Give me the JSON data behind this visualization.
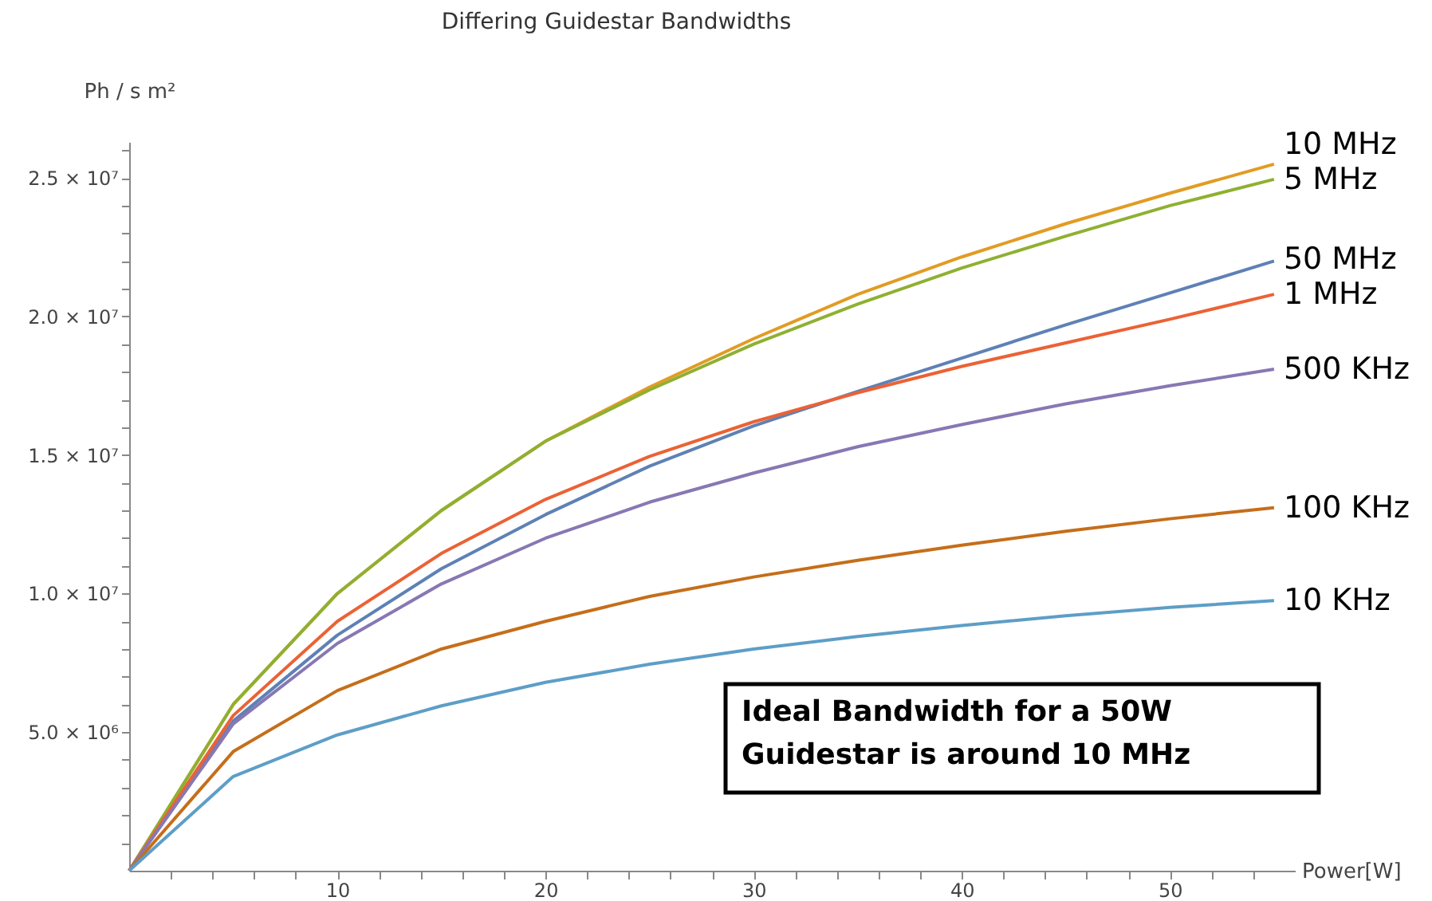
{
  "chart_data": {
    "type": "line",
    "title": "Differing Guidestar Bandwidths",
    "xlabel": "Power[W]",
    "ylabel": "Ph / s m²",
    "x": [
      0,
      5,
      10,
      15,
      20,
      25,
      30,
      35,
      40,
      45,
      50,
      55
    ],
    "series": [
      {
        "name": "10 MHz",
        "color": "#e19c24",
        "values": [
          0,
          6000000,
          10000000,
          13000000,
          15500000,
          17450000,
          19200000,
          20800000,
          22150000,
          23350000,
          24450000,
          25500000
        ]
      },
      {
        "name": "5 MHz",
        "color": "#8fb032",
        "values": [
          0,
          6000000,
          10000000,
          13000000,
          15500000,
          17350000,
          19000000,
          20450000,
          21750000,
          22900000,
          24000000,
          24950000
        ]
      },
      {
        "name": "50 MHz",
        "color": "#5e81b5",
        "values": [
          0,
          5400000,
          8500000,
          10900000,
          12850000,
          14600000,
          16050000,
          17300000,
          18500000,
          19700000,
          20850000,
          22000000
        ]
      },
      {
        "name": "1 MHz",
        "color": "#eb6235",
        "values": [
          0,
          5600000,
          9000000,
          11450000,
          13400000,
          14950000,
          16200000,
          17250000,
          18200000,
          19050000,
          19900000,
          20800000
        ]
      },
      {
        "name": "500 KHz",
        "color": "#8778b3",
        "values": [
          0,
          5300000,
          8200000,
          10350000,
          12000000,
          13300000,
          14350000,
          15300000,
          16100000,
          16850000,
          17500000,
          18100000
        ]
      },
      {
        "name": "100 KHz",
        "color": "#c56e1a",
        "values": [
          0,
          4300000,
          6500000,
          8000000,
          9000000,
          9900000,
          10600000,
          11200000,
          11750000,
          12250000,
          12700000,
          13100000
        ]
      },
      {
        "name": "10 KHz",
        "color": "#5d9ec7",
        "values": [
          0,
          3400000,
          4900000,
          5950000,
          6800000,
          7450000,
          8000000,
          8450000,
          8850000,
          9200000,
          9500000,
          9750000
        ]
      }
    ],
    "xlim": [
      0,
      56
    ],
    "ylim": [
      0,
      26300000
    ],
    "xticks": [
      {
        "value": 2,
        "label": null
      },
      {
        "value": 4,
        "label": null
      },
      {
        "value": 6,
        "label": null
      },
      {
        "value": 8,
        "label": null
      },
      10,
      {
        "value": 12,
        "label": null
      },
      {
        "value": 14,
        "label": null
      },
      {
        "value": 16,
        "label": null
      },
      {
        "value": 18,
        "label": null
      },
      20,
      {
        "value": 22,
        "label": null
      },
      {
        "value": 24,
        "label": null
      },
      {
        "value": 26,
        "label": null
      },
      {
        "value": 28,
        "label": null
      },
      30,
      {
        "value": 32,
        "label": null
      },
      {
        "value": 34,
        "label": null
      },
      {
        "value": 36,
        "label": null
      },
      {
        "value": 38,
        "label": null
      },
      40,
      {
        "value": 42,
        "label": null
      },
      {
        "value": 44,
        "label": null
      },
      {
        "value": 46,
        "label": null
      },
      {
        "value": 48,
        "label": null
      },
      50,
      {
        "value": 52,
        "label": null
      },
      {
        "value": 54,
        "label": null
      }
    ],
    "yticks": [
      {
        "value": 1000000,
        "label": null
      },
      {
        "value": 2000000,
        "label": null
      },
      {
        "value": 3000000,
        "label": null
      },
      {
        "value": 4000000,
        "label": null
      },
      {
        "value": 5000000,
        "label": "5.0 × 10⁶"
      },
      {
        "value": 6000000,
        "label": null
      },
      {
        "value": 7000000,
        "label": null
      },
      {
        "value": 8000000,
        "label": null
      },
      {
        "value": 9000000,
        "label": null
      },
      {
        "value": 10000000,
        "label": "1.0 × 10⁷"
      },
      {
        "value": 11000000,
        "label": null
      },
      {
        "value": 12000000,
        "label": null
      },
      {
        "value": 13000000,
        "label": null
      },
      {
        "value": 14000000,
        "label": null
      },
      {
        "value": 15000000,
        "label": "1.5 × 10⁷"
      },
      {
        "value": 16000000,
        "label": null
      },
      {
        "value": 17000000,
        "label": null
      },
      {
        "value": 18000000,
        "label": null
      },
      {
        "value": 19000000,
        "label": null
      },
      {
        "value": 20000000,
        "label": "2.0 × 10⁷"
      },
      {
        "value": 21000000,
        "label": null
      },
      {
        "value": 22000000,
        "label": null
      },
      {
        "value": 23000000,
        "label": null
      },
      {
        "value": 24000000,
        "label": null
      },
      {
        "value": 25000000,
        "label": "2.5 × 10⁷"
      },
      {
        "value": 26000000,
        "label": null
      }
    ],
    "annotations": [
      "Ideal Bandwidth for a 50W Guidestar is around 10 MHz"
    ],
    "grid": false,
    "legend": false,
    "marker": "none",
    "line_style": "solid"
  }
}
